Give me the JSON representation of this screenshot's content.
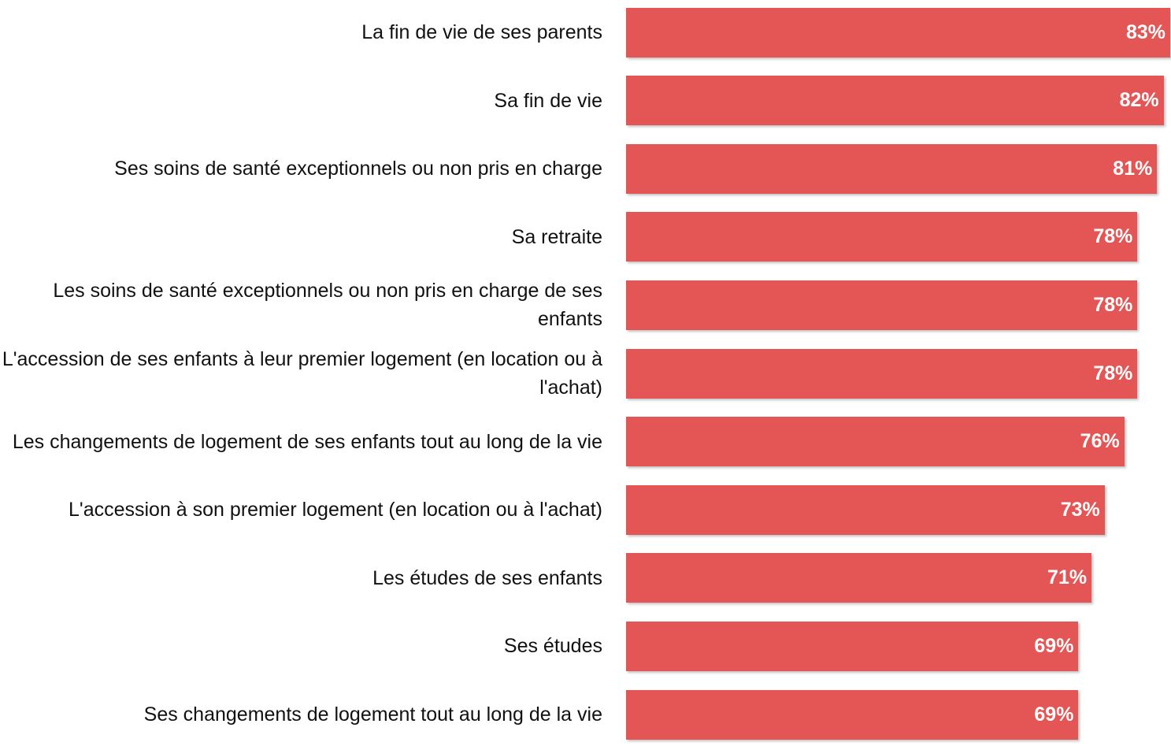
{
  "chart_data": {
    "type": "bar",
    "orientation": "horizontal",
    "color": "#e35655",
    "categories": [
      "La fin de vie de ses parents",
      "Sa fin de vie",
      "Ses soins de santé exceptionnels ou non pris en charge",
      "Sa retraite",
      "Les soins de santé exceptionnels ou non pris en charge de ses enfants",
      "L'accession de ses enfants à leur premier logement (en location ou à l'achat)",
      "Les changements de logement de ses enfants tout au long de la vie",
      "L'accession à son premier logement (en location ou à l'achat)",
      "Les études de ses enfants",
      "Ses études",
      "Ses changements de logement tout au long de la vie"
    ],
    "values": [
      83,
      82,
      81,
      78,
      78,
      78,
      76,
      73,
      71,
      69,
      69
    ],
    "value_labels": [
      "83%",
      "82%",
      "81%",
      "78%",
      "78%",
      "78%",
      "76%",
      "73%",
      "71%",
      "69%",
      "69%"
    ],
    "xlim": [
      0,
      83
    ]
  }
}
